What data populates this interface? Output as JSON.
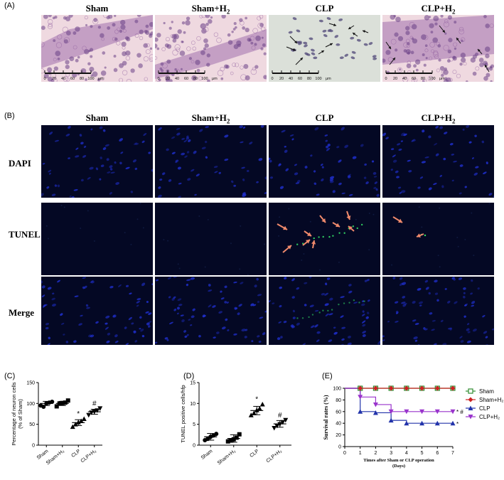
{
  "panelA": {
    "label": "(A)",
    "groups": [
      "Sham",
      "Sham+H",
      "CLP",
      "CLP+H"
    ],
    "subscript": "2",
    "scalebar": {
      "ticks": [
        "0",
        "20",
        "40",
        "60",
        "80",
        "100"
      ],
      "unit": "μm"
    }
  },
  "panelB": {
    "label": "(B)",
    "groups": [
      "Sham",
      "Sham+H",
      "CLP",
      "CLP+H"
    ],
    "subscript": "2",
    "rows": [
      "DAPI",
      "TUNEL",
      "Merge"
    ]
  },
  "colors": {
    "he_bg": "#efd9e0",
    "he_band": "#b58bbb",
    "clp_bg": "#dbe0d9",
    "fluor_bg": "#040824",
    "nucleus": "#2233dd",
    "tunel": "#33dd66",
    "arrow_orange": "#f08a6c"
  },
  "chart_data": [
    {
      "panel": "(C)",
      "type": "scatter",
      "categories": [
        "Sham",
        "Sham+H₂",
        "CLP",
        "CLP+H₂"
      ],
      "ylabel": "Percentage of neuron cells\n(% of Sham)",
      "ylim": [
        0,
        150
      ],
      "yticks": [
        "0",
        "50",
        "100",
        "150"
      ],
      "points": [
        [
          95,
          92,
          100,
          102,
          104
        ],
        [
          93,
          100,
          101,
          102,
          107
        ],
        [
          44,
          50,
          55,
          58,
          63
        ],
        [
          72,
          78,
          80,
          83,
          88
        ]
      ],
      "means": [
        100,
        100,
        54,
        80
      ],
      "sd": [
        5,
        5,
        7,
        6
      ],
      "annotations": [
        "",
        "",
        "*",
        "#"
      ]
    },
    {
      "panel": "(D)",
      "type": "scatter",
      "categories": [
        "Sham",
        "Sham+H₂",
        "CLP",
        "CLP+H₂"
      ],
      "ylabel": "TUNEL positive cells/hfp",
      "ylim": [
        0,
        15
      ],
      "yticks": [
        "0",
        "5",
        "10",
        "15"
      ],
      "points": [
        [
          1.2,
          1.5,
          2.0,
          2.3,
          2.7
        ],
        [
          0.9,
          1.1,
          1.4,
          1.8,
          2.6
        ],
        [
          7.2,
          7.7,
          8.4,
          8.8,
          9.8
        ],
        [
          4.1,
          4.6,
          5.0,
          5.5,
          6.0
        ]
      ],
      "means": [
        2.0,
        1.6,
        8.3,
        5.1
      ],
      "sd": [
        0.8,
        0.9,
        1.0,
        0.8
      ],
      "annotations": [
        "",
        "",
        "*",
        "#"
      ]
    },
    {
      "panel": "(E)",
      "type": "line",
      "ylabel": "Survival rates (%)",
      "xlabel": "Times after Sham or CLP operation",
      "xlabel2": "(Days)",
      "xlim": [
        0,
        7
      ],
      "ylim": [
        0,
        100
      ],
      "xticks": [
        "0",
        "1",
        "2",
        "3",
        "4",
        "5",
        "6",
        "7"
      ],
      "yticks": [
        "0",
        "20",
        "40",
        "60",
        "80",
        "100"
      ],
      "series": [
        {
          "name": "Sham",
          "color": "#2e8b2e",
          "marker": "square",
          "x": [
            0,
            1,
            2,
            3,
            4,
            5,
            6,
            7
          ],
          "y": [
            100,
            100,
            100,
            100,
            100,
            100,
            100,
            100
          ]
        },
        {
          "name": "Sham+H₂",
          "color": "#cc2222",
          "marker": "diamond",
          "x": [
            0,
            1,
            2,
            3,
            4,
            5,
            6,
            7
          ],
          "y": [
            100,
            100,
            100,
            100,
            100,
            100,
            100,
            100
          ]
        },
        {
          "name": "CLP",
          "color": "#2233aa",
          "marker": "triangle",
          "x": [
            0,
            1,
            2,
            3,
            4,
            5,
            6,
            7
          ],
          "y": [
            100,
            60,
            58,
            45,
            40,
            40,
            40,
            40
          ]
        },
        {
          "name": "CLP+H₂",
          "color": "#9933cc",
          "marker": "triangle-down",
          "x": [
            0,
            1,
            2,
            3,
            4,
            5,
            6,
            7
          ],
          "y": [
            100,
            85,
            72,
            60,
            60,
            60,
            60,
            60
          ]
        }
      ],
      "end_annotations": [
        "* #",
        "*"
      ]
    }
  ]
}
